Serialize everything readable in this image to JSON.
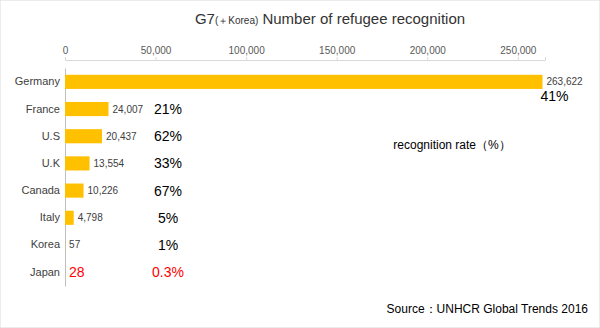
{
  "chart_data": {
    "type": "bar",
    "orientation": "horizontal",
    "title": "G7(＋Korea) Number of refugee recognition",
    "categories": [
      "Germany",
      "France",
      "U.S",
      "U.K",
      "Canada",
      "Italy",
      "Korea",
      "Japan"
    ],
    "values": [
      263622,
      24007,
      20437,
      13554,
      10226,
      4798,
      57,
      28
    ],
    "value_labels": [
      "263,622",
      "24,007",
      "20,437",
      "13,554",
      "10,226",
      "4,798",
      "57",
      "28"
    ],
    "data_labels": true,
    "color": "#ffc000",
    "xlim": [
      0,
      265000
    ],
    "xticks": [
      0,
      {
        "value": 50000,
        "label": "50,000"
      },
      {
        "value": 100000,
        "label": "100,000"
      },
      {
        "value": 150000,
        "label": "150,000"
      },
      {
        "value": 200000,
        "label": "200,000"
      },
      {
        "value": 250000,
        "label": "250,000"
      }
    ],
    "grid": false,
    "recognition_rate_title": "recognition rate（%）",
    "recognition_rate": [
      41,
      21,
      62,
      33,
      67,
      5,
      1,
      0.3
    ],
    "recognition_rate_labels": [
      "41%",
      "21%",
      "62%",
      "33%",
      "67%",
      "5%",
      "1%",
      "0.3%"
    ],
    "source": "Source：UNHCR Global Trends 2016"
  }
}
